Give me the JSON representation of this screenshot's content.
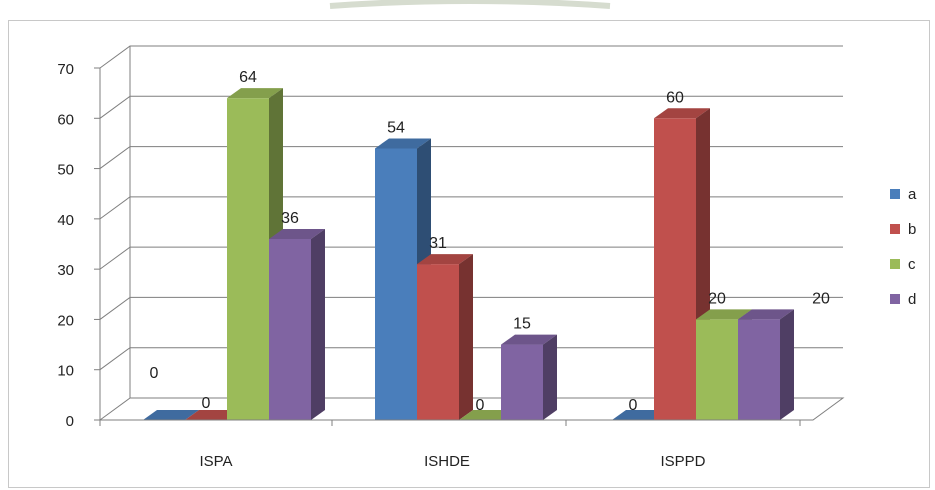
{
  "chart_data": {
    "type": "bar",
    "title": "",
    "xlabel": "",
    "ylabel": "",
    "categories": [
      "ISPA",
      "ISHDE",
      "ISPPD"
    ],
    "series": [
      {
        "name": "a",
        "values": [
          0,
          54,
          0
        ]
      },
      {
        "name": "b",
        "values": [
          0,
          31,
          60
        ]
      },
      {
        "name": "c",
        "values": [
          64,
          0,
          20
        ]
      },
      {
        "name": "d",
        "values": [
          36,
          15,
          20
        ]
      }
    ],
    "data_labels": [
      [
        "0",
        "0",
        "64",
        "36"
      ],
      [
        "54",
        "31",
        "0",
        "15"
      ],
      [
        "0",
        "60",
        "20",
        "20"
      ]
    ],
    "y_ticks": [
      "0",
      "10",
      "20",
      "30",
      "40",
      "50",
      "60",
      "70"
    ],
    "ylim": [
      0,
      70
    ],
    "grid": true,
    "legend_position": "right",
    "style": "3d-clustered-column"
  },
  "colors": {
    "a": "#4a7ebb",
    "b": "#c0504d",
    "c": "#9bbb59",
    "d": "#8064a2",
    "grid": "#7f7f7f",
    "text": "#222222"
  }
}
